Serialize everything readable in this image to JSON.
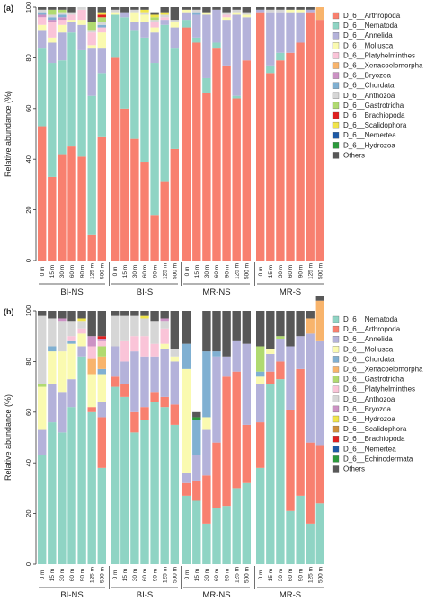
{
  "chart_data": [
    {
      "type": "bar",
      "panel_label": "(a)",
      "stacked": true,
      "ylabel": "Relative abundance (%)",
      "ylim": [
        0,
        100
      ],
      "yticks": [
        0,
        20,
        40,
        60,
        80,
        100
      ],
      "categories": [
        "0 m",
        "15 m",
        "30 m",
        "60 m",
        "90 m",
        "125 m",
        "500 m",
        "0 m",
        "15 m",
        "30 m",
        "60 m",
        "90 m",
        "125 m",
        "500 m",
        "0 m",
        "15 m",
        "30 m",
        "60 m",
        "90 m",
        "125 m",
        "500 m",
        "0 m",
        "15 m",
        "30 m",
        "60 m",
        "90 m",
        "125 m",
        "500 m"
      ],
      "groups": [
        {
          "name": "BI-NS"
        },
        {
          "name": "BI-S"
        },
        {
          "name": "MR-NS"
        },
        {
          "name": "MR-S"
        }
      ],
      "series": [
        {
          "name": "D_6__Arthropoda",
          "color": "#f8806f",
          "values": [
            53,
            33,
            42,
            45,
            41,
            10,
            49,
            80,
            60,
            48,
            39,
            18,
            31,
            44,
            92,
            86,
            66,
            84,
            77,
            64,
            79,
            98,
            74,
            79,
            82,
            86,
            98,
            95
          ]
        },
        {
          "name": "D_6__Nematoda",
          "color": "#8fd4c4",
          "values": [
            31,
            45,
            37,
            45,
            42,
            55,
            25,
            17,
            36,
            43,
            49,
            60,
            62,
            40,
            3,
            2,
            6,
            2,
            0,
            1,
            0,
            0,
            3,
            3,
            0,
            0,
            0,
            0
          ]
        },
        {
          "name": "D_6__Annelida",
          "color": "#b4b2da",
          "values": [
            7,
            8,
            11,
            4,
            10,
            19,
            10,
            0,
            2,
            3,
            6,
            12,
            2,
            8,
            3,
            9,
            25,
            13,
            18,
            32,
            17,
            1,
            21,
            16,
            16,
            12,
            1,
            0
          ]
        },
        {
          "name": "D_6__Mollusca",
          "color": "#fafab0",
          "values": [
            2,
            2,
            3,
            1,
            2,
            1,
            6,
            1,
            0,
            4,
            3,
            2,
            0,
            2,
            1,
            0,
            1,
            0,
            1,
            1,
            1,
            0,
            0,
            0,
            1,
            1,
            0,
            0
          ]
        },
        {
          "name": "D_6__Platyhelminthes",
          "color": "#fac4d8",
          "values": [
            3,
            6,
            2,
            2,
            4,
            5,
            2,
            0,
            0,
            0,
            0,
            2,
            1,
            0,
            0,
            0,
            0,
            0,
            1,
            0,
            0,
            0,
            0,
            0,
            0,
            0,
            0,
            0
          ]
        },
        {
          "name": "D_6__Xenacoelomorpha",
          "color": "#f8b46c",
          "values": [
            0,
            0,
            0,
            0,
            0,
            0,
            0,
            0,
            0,
            0,
            0,
            0,
            0,
            0,
            0,
            0,
            0,
            0,
            0,
            0,
            0,
            0,
            0,
            0,
            0,
            0,
            0,
            5
          ]
        },
        {
          "name": "D_6__Bryozoa",
          "color": "#cc92c4",
          "values": [
            1,
            1,
            1,
            0,
            0,
            0,
            0,
            0,
            0,
            0,
            0,
            0,
            0,
            0,
            0,
            0,
            0,
            0,
            0,
            0,
            0,
            0,
            0,
            0,
            0,
            0,
            0,
            0
          ]
        },
        {
          "name": "D_6__Chordata",
          "color": "#80b0d2",
          "values": [
            1,
            1,
            1,
            0,
            0,
            0,
            1,
            0,
            0,
            0,
            0,
            0,
            0,
            0,
            0,
            1,
            0,
            0,
            0,
            0,
            0,
            0,
            0,
            0,
            0,
            0,
            0,
            0
          ]
        },
        {
          "name": "D_6__Anthozoa",
          "color": "#d6d6d6",
          "values": [
            1,
            1,
            1,
            1,
            1,
            1,
            1,
            1,
            0,
            1,
            1,
            1,
            1,
            1,
            0,
            1,
            0,
            0,
            1,
            1,
            1,
            0,
            1,
            1,
            0,
            0,
            0,
            0
          ]
        },
        {
          "name": "D_6__Gastrotricha",
          "color": "#b0da70",
          "values": [
            0,
            2,
            1,
            0,
            0,
            3,
            2,
            0,
            0,
            0,
            0,
            1,
            0,
            0,
            0,
            0,
            0,
            0,
            0,
            0,
            0,
            0,
            0,
            0,
            0,
            0,
            0,
            0
          ]
        },
        {
          "name": "D_6__Brachiopoda",
          "color": "#e02020",
          "values": [
            0,
            0,
            0,
            0,
            0,
            0,
            1,
            0,
            0,
            0,
            0,
            0,
            0,
            0,
            0,
            0,
            0,
            0,
            0,
            0,
            0,
            0,
            0,
            0,
            0,
            0,
            0,
            0
          ]
        },
        {
          "name": "D_6__Scalidophora",
          "color": "#f0e44a",
          "values": [
            0,
            0,
            0,
            0,
            0,
            0,
            1,
            0,
            0,
            0,
            1,
            1,
            1,
            0,
            0,
            0,
            0,
            0,
            0,
            0,
            0,
            0,
            0,
            0,
            0,
            0,
            0,
            0
          ]
        },
        {
          "name": "D_6__Nemertea",
          "color": "#1e5aa6",
          "values": [
            0,
            0,
            0,
            0,
            0,
            0,
            0,
            0,
            0,
            0,
            0,
            0,
            0,
            0,
            0,
            0,
            0,
            0,
            0,
            0,
            0,
            0,
            0,
            0,
            0,
            0,
            0,
            0
          ]
        },
        {
          "name": "D_6__Hydrozoa",
          "color": "#2c9a3c",
          "values": [
            0,
            0,
            0,
            0,
            0,
            0,
            0,
            0,
            0,
            0,
            0,
            0,
            0,
            0,
            0,
            0,
            0,
            0,
            0,
            0,
            0,
            0,
            0,
            0,
            0,
            0,
            0,
            0
          ]
        },
        {
          "name": "Others",
          "color": "#585858",
          "values": [
            1,
            1,
            1,
            2,
            0,
            6,
            2,
            1,
            2,
            1,
            1,
            1,
            2,
            5,
            1,
            1,
            2,
            1,
            2,
            1,
            2,
            1,
            1,
            1,
            1,
            1,
            1,
            0
          ]
        }
      ]
    },
    {
      "type": "bar",
      "panel_label": "(b)",
      "stacked": true,
      "ylabel": "Relative abundance (%)",
      "ylim": [
        0,
        100
      ],
      "yticks": [
        0,
        20,
        40,
        60,
        80,
        100
      ],
      "categories": [
        "0 m",
        "15 m",
        "30 m",
        "60 m",
        "90 m",
        "125 m",
        "500 m",
        "0 m",
        "15 m",
        "30 m",
        "60 m",
        "90 m",
        "125 m",
        "500 m",
        "0 m",
        "15 m",
        "30 m",
        "60 m",
        "90 m",
        "125 m",
        "500 m",
        "0 m",
        "15 m",
        "30 m",
        "60 m",
        "90 m",
        "125 m",
        "500 m"
      ],
      "groups": [
        {
          "name": "BI-NS"
        },
        {
          "name": "BI-S"
        },
        {
          "name": "MR-NS"
        },
        {
          "name": "MR-S"
        }
      ],
      "series": [
        {
          "name": "D_6__Nematoda",
          "color": "#8fd4c4",
          "values": [
            43,
            56,
            52,
            62,
            82,
            60,
            38,
            70,
            66,
            52,
            57,
            64,
            62,
            55,
            27,
            25,
            16,
            22,
            23,
            30,
            32,
            38,
            71,
            73,
            21,
            27,
            16,
            24
          ]
        },
        {
          "name": "D_6__Arthropoda",
          "color": "#f8806f",
          "values": [
            0,
            0,
            0,
            0,
            0,
            2,
            20,
            4,
            5,
            8,
            5,
            4,
            4,
            8,
            5,
            8,
            19,
            26,
            51,
            46,
            23,
            18,
            5,
            7,
            40,
            50,
            32,
            23
          ]
        },
        {
          "name": "D_6__Annelida",
          "color": "#b4b2da",
          "values": [
            10,
            15,
            16,
            11,
            4,
            0,
            6,
            12,
            9,
            24,
            20,
            14,
            19,
            17,
            4,
            10,
            18,
            34,
            8,
            12,
            32,
            15,
            7,
            9,
            25,
            13,
            43,
            41
          ]
        },
        {
          "name": "D_6__Mollusca",
          "color": "#fafab0",
          "values": [
            17,
            13,
            16,
            14,
            5,
            13,
            11,
            0,
            0,
            0,
            0,
            0,
            2,
            2,
            41,
            0,
            5,
            0,
            0,
            0,
            0,
            3,
            2,
            0,
            0,
            0,
            0,
            0
          ]
        },
        {
          "name": "D_6__Chordata",
          "color": "#80b0d2",
          "values": [
            0,
            2,
            0,
            1,
            0,
            0,
            2,
            0,
            0,
            0,
            0,
            0,
            0,
            0,
            10,
            14,
            26,
            2,
            0,
            0,
            0,
            2,
            0,
            0,
            0,
            0,
            0,
            0
          ]
        },
        {
          "name": "D_6__Xenacoelomorpha",
          "color": "#f8b46c",
          "values": [
            0,
            0,
            0,
            0,
            0,
            6,
            5,
            0,
            0,
            0,
            0,
            0,
            0,
            0,
            0,
            0,
            0,
            0,
            0,
            0,
            0,
            0,
            0,
            0,
            0,
            0,
            6,
            16
          ]
        },
        {
          "name": "D_6__Gastrotricha",
          "color": "#b0da70",
          "values": [
            1,
            0,
            0,
            0,
            0,
            0,
            4,
            0,
            0,
            0,
            0,
            0,
            0,
            0,
            0,
            0,
            0,
            0,
            0,
            0,
            0,
            10,
            0,
            1,
            0,
            0,
            0,
            0
          ]
        },
        {
          "name": "D_6__Platyhelminthes",
          "color": "#fac4d8",
          "values": [
            0,
            0,
            0,
            2,
            2,
            5,
            2,
            0,
            8,
            6,
            8,
            5,
            6,
            0,
            0,
            0,
            0,
            0,
            0,
            0,
            0,
            0,
            0,
            0,
            0,
            0,
            0,
            0
          ]
        },
        {
          "name": "D_6__Anthozoa",
          "color": "#d6d6d6",
          "values": [
            27,
            11,
            12,
            6,
            3,
            0,
            0,
            12,
            10,
            8,
            7,
            9,
            3,
            3,
            0,
            0,
            0,
            0,
            0,
            0,
            0,
            0,
            0,
            0,
            0,
            0,
            0,
            0
          ]
        },
        {
          "name": "D_6__Bryozoa",
          "color": "#cc92c4",
          "values": [
            0,
            0,
            1,
            0,
            0,
            4,
            1,
            0,
            0,
            0,
            0,
            0,
            1,
            0,
            0,
            0,
            0,
            0,
            0,
            0,
            0,
            0,
            0,
            0,
            0,
            0,
            0,
            0
          ]
        },
        {
          "name": "D_6__Hydrozoa",
          "color": "#f0e44a",
          "values": [
            0,
            0,
            0,
            0,
            1,
            0,
            0,
            0,
            0,
            0,
            1,
            0,
            0,
            0,
            0,
            0,
            0,
            0,
            0,
            0,
            0,
            0,
            0,
            0,
            0,
            0,
            0,
            0
          ]
        },
        {
          "name": "D_6__Scalidophora",
          "color": "#cf8f3c",
          "values": [
            0,
            0,
            0,
            0,
            0,
            0,
            0,
            0,
            0,
            0,
            0,
            0,
            0,
            0,
            0,
            0,
            0,
            0,
            0,
            0,
            0,
            0,
            0,
            0,
            0,
            0,
            0,
            0
          ]
        },
        {
          "name": "D_6__Brachiopoda",
          "color": "#e02020",
          "values": [
            0,
            0,
            0,
            0,
            0,
            0,
            1,
            0,
            0,
            0,
            0,
            0,
            0,
            0,
            0,
            0,
            0,
            0,
            0,
            0,
            0,
            0,
            0,
            0,
            0,
            0,
            0,
            0
          ]
        },
        {
          "name": "D_6__Nemertea",
          "color": "#1e5aa6",
          "values": [
            0,
            0,
            0,
            0,
            0,
            0,
            0,
            0,
            0,
            0,
            0,
            0,
            0,
            0,
            0,
            0,
            0,
            0,
            0,
            0,
            0,
            0,
            0,
            0,
            0,
            0,
            0,
            0
          ]
        },
        {
          "name": "D_6__Echinodermata",
          "color": "#2c9a3c",
          "values": [
            0,
            0,
            0,
            0,
            0,
            0,
            0,
            0,
            0,
            0,
            0,
            0,
            0,
            0,
            0,
            1,
            0,
            0,
            0,
            0,
            0,
            0,
            0,
            0,
            0,
            0,
            0,
            0
          ]
        },
        {
          "name": "Others",
          "color": "#585858",
          "values": [
            2,
            3,
            3,
            4,
            3,
            10,
            10,
            2,
            2,
            2,
            2,
            4,
            3,
            15,
            13,
            2,
            16,
            16,
            18,
            12,
            13,
            14,
            15,
            10,
            14,
            10,
            3,
            2
          ]
        }
      ]
    }
  ]
}
